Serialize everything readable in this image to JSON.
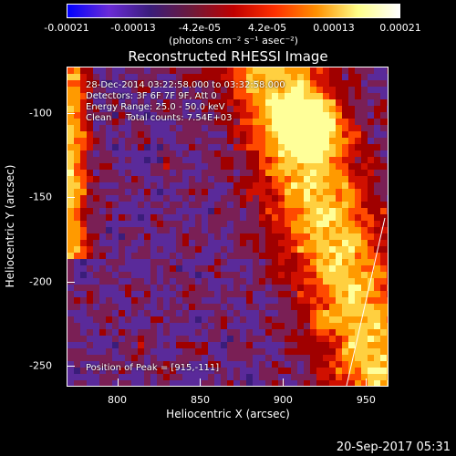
{
  "colorbar": {
    "tick_labels": [
      "-0.00021",
      "-0.00013",
      "-4.2e-05",
      "4.2e-05",
      "0.00013",
      "0.00021"
    ],
    "unit": "(photons cm⁻² s⁻¹ asec⁻²)",
    "colors": [
      "#0000ff",
      "#6a2bd6",
      "#3a1d7a",
      "#6e1a3a",
      "#c00000",
      "#ff3000",
      "#ff9000",
      "#ffff88",
      "#ffffff"
    ]
  },
  "chart_data": {
    "type": "heatmap",
    "title": "Reconstructed RHESSI Image",
    "xlabel": "Heliocentric X (arcsec)",
    "ylabel": "Heliocentric Y (arcsec)",
    "xlim": [
      770,
      963
    ],
    "ylim": [
      -262,
      -73
    ],
    "x_ticks": [
      800,
      850,
      900,
      950
    ],
    "y_ticks": [
      -100,
      -150,
      -200,
      -250
    ],
    "color_range": [
      -0.00021,
      0.00021
    ],
    "peak": {
      "x": 915,
      "y": -111
    },
    "annotations": [
      "28-Dec-2014 03:22:58.000 to 03:32:58.000",
      "Detectors: 3F 6F 7F 9F, Att 0",
      "Energy Range: 25.0 - 50.0 keV",
      "Clean     Total counts: 7.54E+03"
    ],
    "peak_label": "Position of Peak = [915,-111]"
  },
  "footer": {
    "timestamp": "20-Sep-2017 05:31"
  }
}
